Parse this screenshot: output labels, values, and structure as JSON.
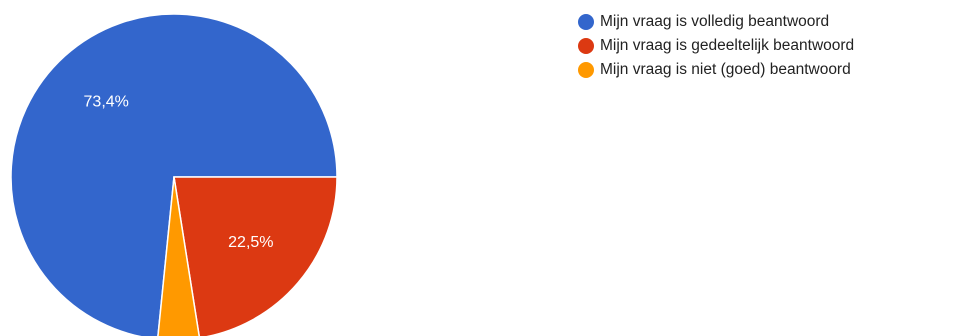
{
  "chart_data": {
    "type": "pie",
    "categories": [
      "Mijn vraag is volledig beantwoord",
      "Mijn vraag is gedeeltelijk beantwoord",
      "Mijn vraag is niet (goed) beantwoord"
    ],
    "values": [
      73.4,
      22.5,
      4.1
    ],
    "labels": [
      "73,4%",
      "22,5%",
      ""
    ],
    "colors": [
      "#3366cc",
      "#dc3912",
      "#ff9900"
    ],
    "legend_position": "top-right"
  }
}
